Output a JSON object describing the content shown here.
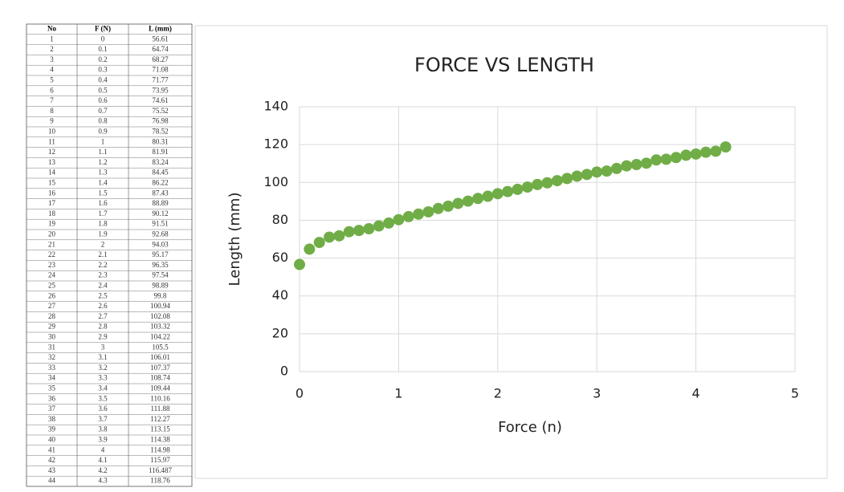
{
  "table": {
    "header": [
      "No",
      "F (N)",
      "L (mm)"
    ],
    "rows": [
      [
        "1",
        "0",
        "56.61"
      ],
      [
        "2",
        "0.1",
        "64.74"
      ],
      [
        "3",
        "0.2",
        "68.27"
      ],
      [
        "4",
        "0.3",
        "71.08"
      ],
      [
        "5",
        "0.4",
        "71.77"
      ],
      [
        "6",
        "0.5",
        "73.95"
      ],
      [
        "7",
        "0.6",
        "74.61"
      ],
      [
        "8",
        "0.7",
        "75.52"
      ],
      [
        "9",
        "0.8",
        "76.98"
      ],
      [
        "10",
        "0.9",
        "78.52"
      ],
      [
        "11",
        "1",
        "80.31"
      ],
      [
        "12",
        "1.1",
        "81.91"
      ],
      [
        "13",
        "1.2",
        "83.24"
      ],
      [
        "14",
        "1.3",
        "84.45"
      ],
      [
        "15",
        "1.4",
        "86.22"
      ],
      [
        "16",
        "1.5",
        "87.43"
      ],
      [
        "17",
        "1.6",
        "88.89"
      ],
      [
        "18",
        "1.7",
        "90.12"
      ],
      [
        "19",
        "1.8",
        "91.51"
      ],
      [
        "20",
        "1.9",
        "92.68"
      ],
      [
        "21",
        "2",
        "94.03"
      ],
      [
        "22",
        "2.1",
        "95.17"
      ],
      [
        "23",
        "2.2",
        "96.35"
      ],
      [
        "24",
        "2.3",
        "97.54"
      ],
      [
        "25",
        "2.4",
        "98.89"
      ],
      [
        "26",
        "2.5",
        "99.8"
      ],
      [
        "27",
        "2.6",
        "100.94"
      ],
      [
        "28",
        "2.7",
        "102.08"
      ],
      [
        "29",
        "2.8",
        "103.32"
      ],
      [
        "30",
        "2.9",
        "104.22"
      ],
      [
        "31",
        "3",
        "105.5"
      ],
      [
        "32",
        "3.1",
        "106.01"
      ],
      [
        "33",
        "3.2",
        "107.37"
      ],
      [
        "34",
        "3.3",
        "108.74"
      ],
      [
        "35",
        "3.4",
        "109.44"
      ],
      [
        "36",
        "3.5",
        "110.16"
      ],
      [
        "37",
        "3.6",
        "111.88"
      ],
      [
        "38",
        "3.7",
        "112.27"
      ],
      [
        "39",
        "3.8",
        "113.15"
      ],
      [
        "40",
        "3.9",
        "114.38"
      ],
      [
        "41",
        "4",
        "114.98"
      ],
      [
        "42",
        "4.1",
        "115.97"
      ],
      [
        "43",
        "4.2",
        "116.487"
      ],
      [
        "44",
        "4.3",
        "118.76"
      ]
    ]
  },
  "chart_data": {
    "type": "scatter",
    "title": "FORCE VS LENGTH",
    "x_label": "Force (n)",
    "y_label": "Length (mm)",
    "x": [
      0,
      0.1,
      0.2,
      0.3,
      0.4,
      0.5,
      0.6,
      0.7,
      0.8,
      0.9,
      1,
      1.1,
      1.2,
      1.3,
      1.4,
      1.5,
      1.6,
      1.7,
      1.8,
      1.9,
      2,
      2.1,
      2.2,
      2.3,
      2.4,
      2.5,
      2.6,
      2.7,
      2.8,
      2.9,
      3,
      3.1,
      3.2,
      3.3,
      3.4,
      3.5,
      3.6,
      3.7,
      3.8,
      3.9,
      4,
      4.1,
      4.2,
      4.3
    ],
    "values": [
      56.61,
      64.74,
      68.27,
      71.08,
      71.77,
      73.95,
      74.61,
      75.52,
      76.98,
      78.52,
      80.31,
      81.91,
      83.24,
      84.45,
      86.22,
      87.43,
      88.89,
      90.12,
      91.51,
      92.68,
      94.03,
      95.17,
      96.35,
      97.54,
      98.89,
      99.8,
      100.94,
      102.08,
      103.32,
      104.22,
      105.5,
      106.01,
      107.37,
      108.74,
      109.44,
      110.16,
      111.88,
      112.27,
      113.15,
      114.38,
      114.98,
      115.97,
      116.487,
      118.76
    ],
    "color": "#70ad47",
    "xlim": [
      0,
      5
    ],
    "xticks": [
      0,
      1,
      2,
      3,
      4,
      5
    ],
    "ylim": [
      0,
      140
    ],
    "yticks": [
      0,
      20,
      40,
      60,
      80,
      100,
      120,
      140
    ],
    "grid": true
  }
}
